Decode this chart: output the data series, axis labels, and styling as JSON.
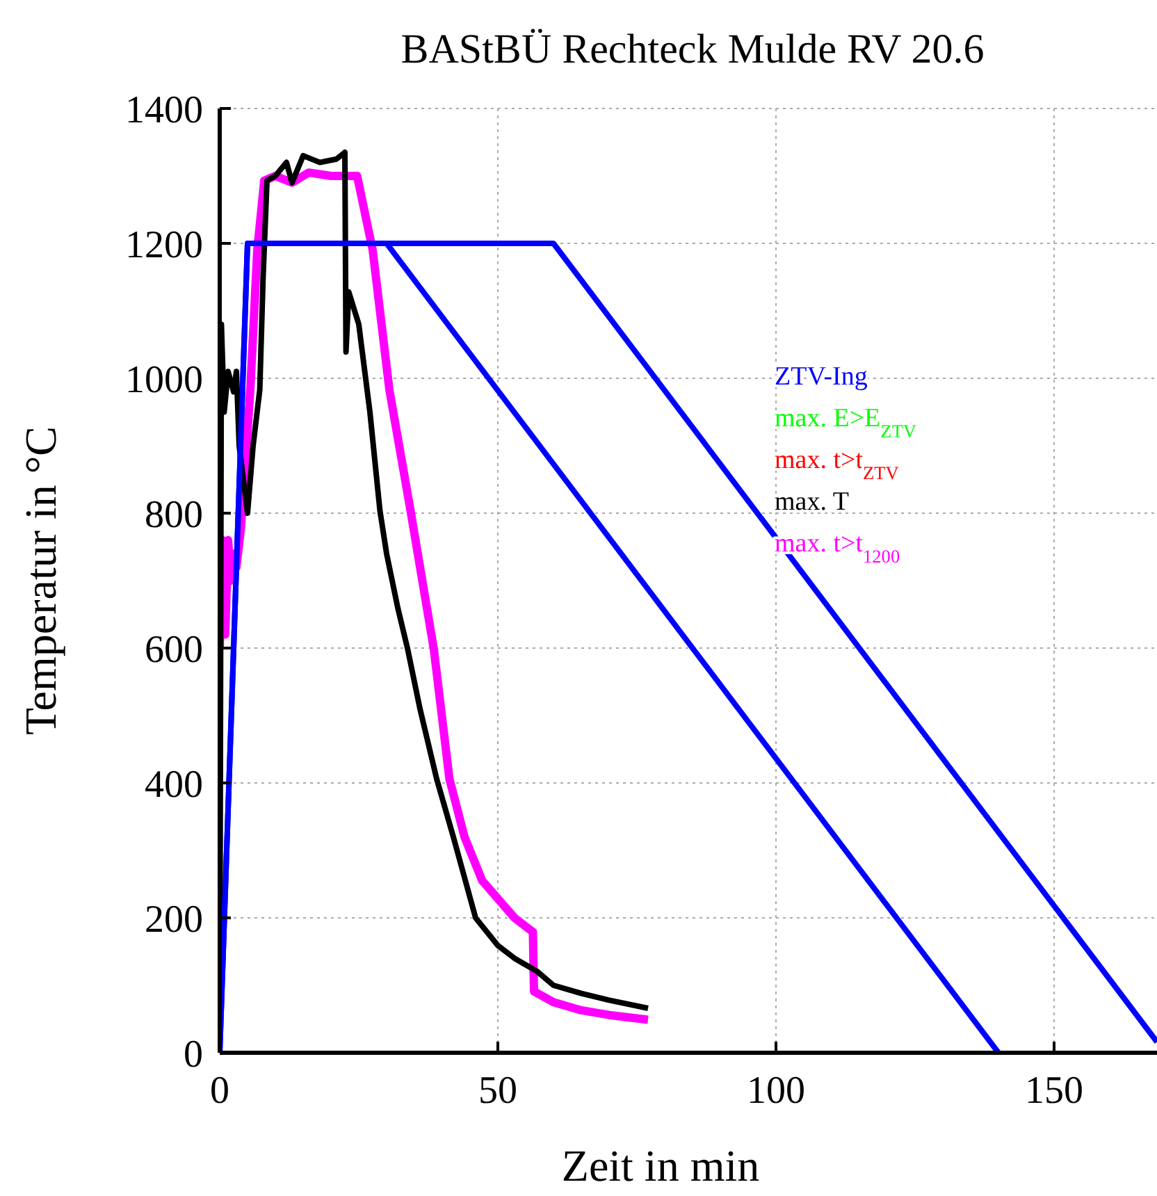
{
  "chart_data": {
    "type": "line",
    "title": "BAStBÜ Rechteck Mulde RV 20.6",
    "xlabel": "Zeit in min",
    "ylabel": "Temperatur in °C",
    "xlim": [
      0,
      168.5
    ],
    "xticks": [
      0,
      50,
      100,
      150
    ],
    "ylim": [
      0,
      1400
    ],
    "yticks": [
      0,
      200,
      400,
      600,
      800,
      1000,
      1200,
      1400
    ],
    "grid": true,
    "legend": "right",
    "marker": "none",
    "line_style": "solid",
    "series": [
      {
        "name": "ZTV-Ing",
        "color": "#0000ff",
        "x": [
          0,
          5,
          30,
          140
        ],
        "values": [
          0,
          1200,
          1200,
          0
        ]
      },
      {
        "name": "max. E>E$_{ZTV}$",
        "color": "#00ff00"
      },
      {
        "name": "max. t>t$_{ZTV}$",
        "color": "#ff0000"
      },
      {
        "name": "max. T",
        "color": "#000000",
        "x": [
          0,
          0.3,
          0.8,
          1.5,
          2.5,
          3,
          3.5,
          5,
          6,
          7.2,
          7.8,
          8.5,
          10,
          12,
          13,
          15,
          18,
          21,
          22.5,
          22.7,
          23.2,
          25,
          27,
          28.8,
          30,
          32,
          33.8,
          36,
          39,
          42,
          44,
          46,
          50,
          53,
          57,
          60,
          65,
          70,
          77
        ],
        "values": [
          0,
          1080,
          950,
          1010,
          980,
          1010,
          900,
          800,
          900,
          983,
          1150,
          1293,
          1300,
          1320,
          1290,
          1330,
          1320,
          1325,
          1335,
          1039,
          1128,
          1080,
          950,
          804,
          740,
          660,
          598,
          510,
          406,
          320,
          260,
          200,
          159,
          140,
          121,
          100,
          88,
          78,
          66
        ]
      },
      {
        "name": "max. t>t$_{1200}$",
        "color": "#ff00ff",
        "x": [
          0,
          0.5,
          1,
          1.5,
          2,
          2.5,
          3,
          3.8,
          5.5,
          6.75,
          8,
          10,
          13,
          16,
          20,
          24.7,
          27.5,
          30.5,
          34.3,
          38.5,
          41.3,
          44,
          47.2,
          53,
          56.3,
          56.5,
          60,
          65,
          70,
          77
        ],
        "values": [
          600,
          760,
          620,
          760,
          700,
          740,
          720,
          777,
          983,
          1190,
          1293,
          1300,
          1290,
          1305,
          1300,
          1300,
          1190,
          983,
          804,
          598,
          406,
          320,
          255,
          200,
          179,
          91,
          75,
          63,
          56,
          49
        ]
      },
      {
        "color": "#0000ff",
        "x": [
          0,
          5,
          60,
          168.5
        ],
        "values": [
          0,
          1200,
          1200,
          16
        ]
      }
    ]
  }
}
